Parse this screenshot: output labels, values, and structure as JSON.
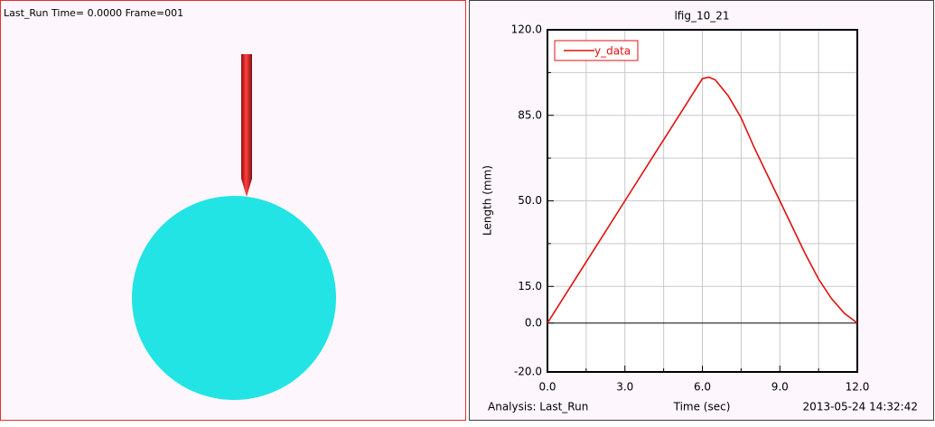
{
  "viewport": {
    "status": "Last_Run   Time=  0.0000  Frame=001"
  },
  "chart_data": {
    "type": "line",
    "title": "lfig_10_21",
    "x_label": "Time (sec)",
    "y_label": "Length (mm)",
    "footer_left": "Analysis:  Last_Run",
    "footer_right": "2013-05-24 14:32:42",
    "x": [
      0,
      1,
      2,
      3,
      4,
      5,
      6,
      6.25,
      6.5,
      7,
      7.5,
      8,
      8.5,
      9,
      9.5,
      10,
      10.5,
      11,
      11.5,
      12
    ],
    "series": [
      {
        "name": "y_data",
        "color": "#e01010",
        "values": [
          0,
          16.7,
          33.3,
          50,
          66.7,
          83.3,
          100,
          100.6,
          99.5,
          93,
          84,
          72,
          61,
          50,
          39,
          28,
          18,
          10,
          4,
          0
        ]
      }
    ],
    "xlim": [
      0,
      12
    ],
    "ylim": [
      -20,
      120
    ],
    "xticks": [
      {
        "value": 0,
        "label": "0.0"
      },
      {
        "value": 3,
        "label": "3.0"
      },
      {
        "value": 6,
        "label": "6.0"
      },
      {
        "value": 9,
        "label": "9.0"
      },
      {
        "value": 12,
        "label": "12.0"
      }
    ],
    "xminorticks": [
      1.5,
      4.5,
      7.5,
      10.5
    ],
    "yticks": [
      {
        "value": -20,
        "label": "-20.0"
      },
      {
        "value": 0,
        "label": "0.0"
      },
      {
        "value": 15,
        "label": "15.0"
      },
      {
        "value": 50,
        "label": "50.0"
      },
      {
        "value": 85,
        "label": "85.0"
      },
      {
        "value": 120,
        "label": "120.0"
      }
    ],
    "yminorticks": [
      67.5,
      102.5,
      32.5
    ],
    "grid": true,
    "legend": "top-left"
  }
}
